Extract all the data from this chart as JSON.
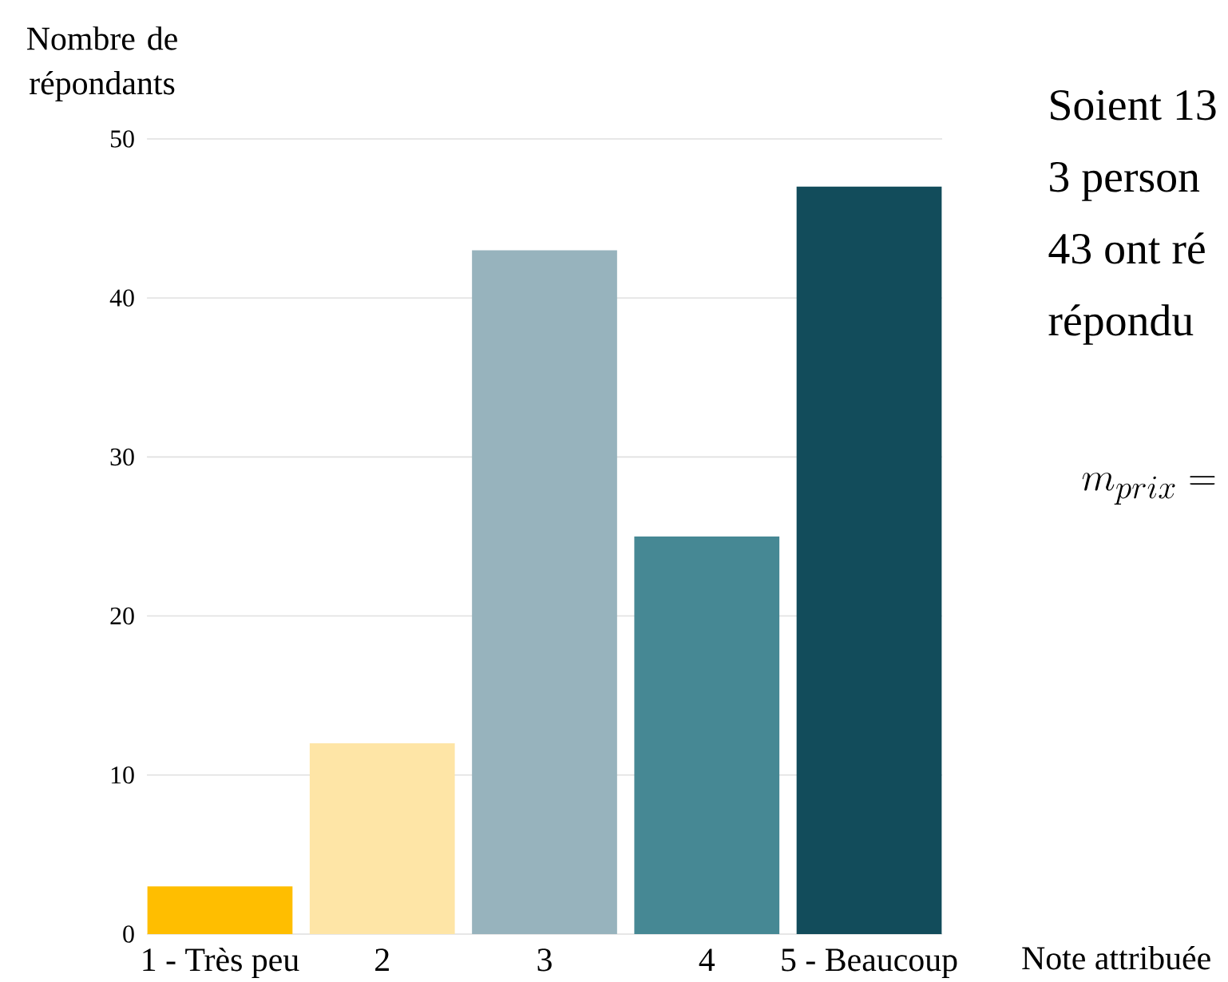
{
  "chart_data": {
    "type": "bar",
    "xlabel": "Note attribuée",
    "ylabel": "Nombre de répondants",
    "categories": [
      "1 - Très peu",
      "2",
      "3",
      "4",
      "5 - Beaucoup"
    ],
    "values": [
      3,
      12,
      43,
      25,
      47
    ],
    "colors": [
      "#ffbe00",
      "#fee5a6",
      "#97b3bd",
      "#468894",
      "#124c5b"
    ],
    "ylim": [
      0,
      50
    ],
    "yticks": [
      0,
      10,
      20,
      30,
      40,
      50
    ],
    "grid": "y",
    "annotations": [
      "Soient 13",
      "3 person",
      "43 ont ré",
      "répondu",
      "m_{prix} ="
    ]
  }
}
